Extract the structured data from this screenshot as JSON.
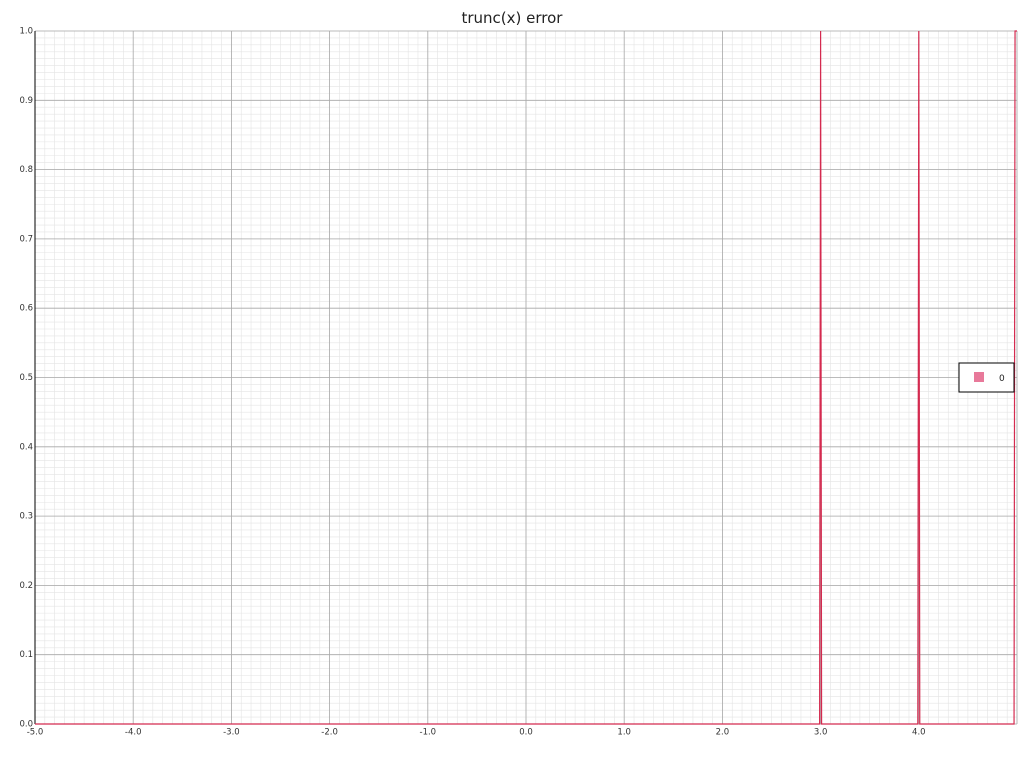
{
  "chart_data": {
    "type": "line",
    "title": "trunc(x) error",
    "xlabel": "",
    "ylabel": "",
    "xlim": [
      -5.0,
      5.0
    ],
    "ylim": [
      0.0,
      1.0
    ],
    "grid": true,
    "legend_placement": "right",
    "x_ticks": [
      "-5.0",
      "-4.0",
      "-3.0",
      "-2.0",
      "-1.0",
      "0.0",
      "1.0",
      "2.0",
      "3.0",
      "4.0"
    ],
    "y_ticks": [
      "0.0",
      "0.1",
      "0.2",
      "0.3",
      "0.4",
      "0.5",
      "0.6",
      "0.7",
      "0.8",
      "0.9",
      "1.0"
    ],
    "series": [
      {
        "name": "0",
        "color": "#e8799a",
        "line_color": "#d42a4f",
        "x": [
          -5.0,
          2.99,
          3.0,
          3.01,
          3.99,
          4.0,
          4.01,
          4.97,
          4.98,
          5.0
        ],
        "y": [
          0.0,
          0.0,
          1.0,
          0.0,
          0.0,
          1.0,
          0.0,
          0.0,
          1.0,
          1.0
        ]
      }
    ]
  }
}
